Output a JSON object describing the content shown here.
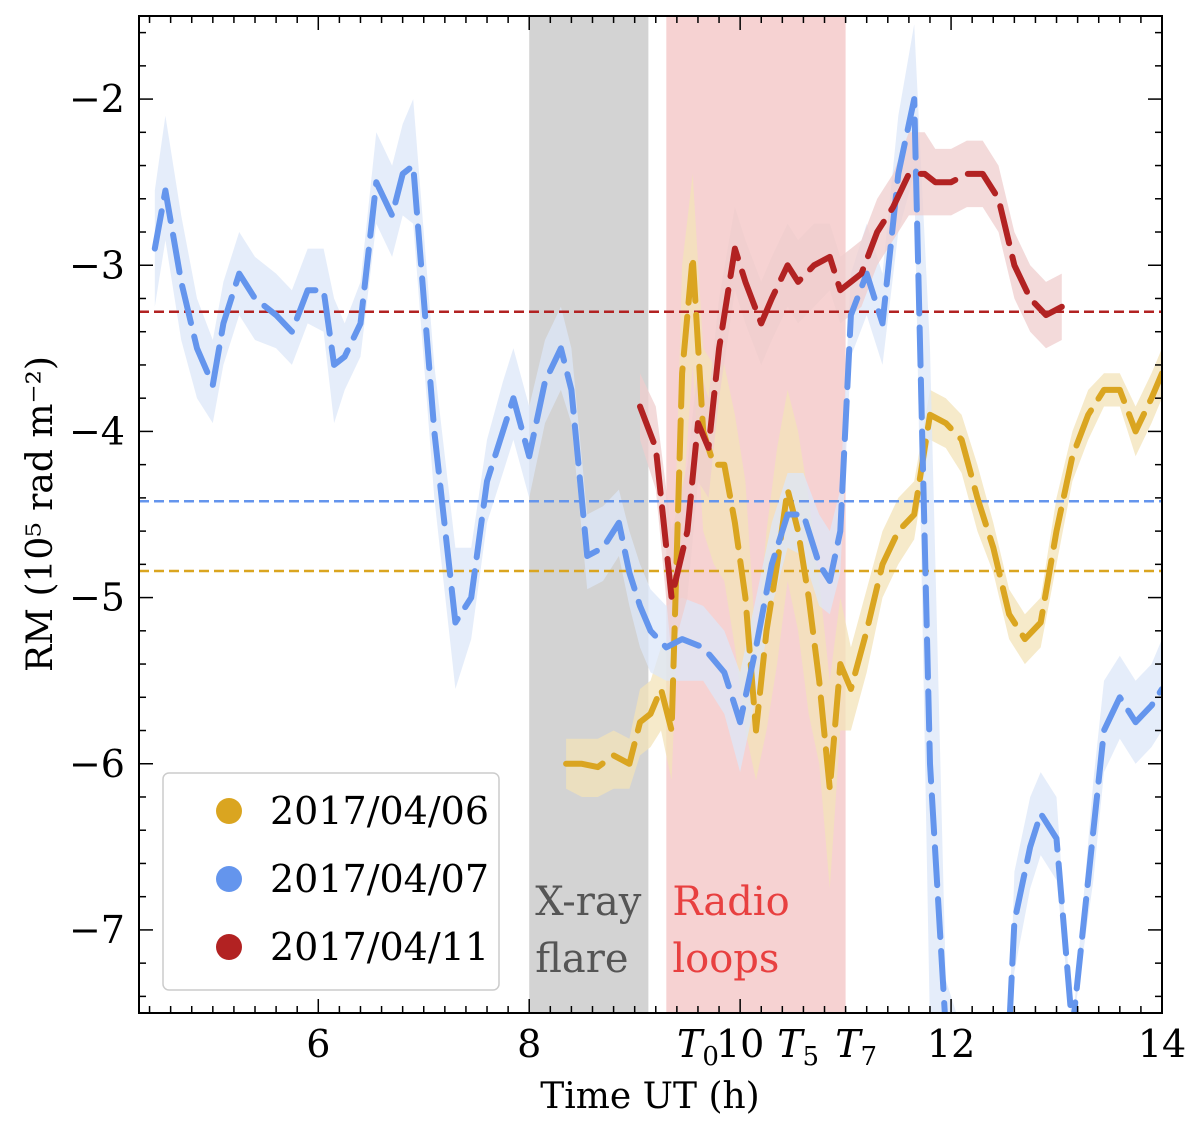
{
  "chart_data": {
    "type": "line",
    "title": "",
    "xlabel": "Time UT (h)",
    "ylabel": "RM (10⁵ rad m⁻²)",
    "xlim": [
      4.3,
      14.0
    ],
    "ylim": [
      -7.5,
      -1.5
    ],
    "x_ticks": [
      6,
      8,
      10,
      12,
      14
    ],
    "x_tick_labels": [
      "6",
      "8",
      "10",
      "12",
      "14"
    ],
    "x_special_ticks": [
      {
        "x": 9.6,
        "label": "T",
        "sub": "0"
      },
      {
        "x": 10.55,
        "label": "T",
        "sub": "5"
      },
      {
        "x": 11.1,
        "label": "T",
        "sub": "7"
      }
    ],
    "y_ticks": [
      -7,
      -6,
      -5,
      -4,
      -3,
      -2
    ],
    "y_tick_labels": [
      "−7",
      "−6",
      "−5",
      "−4",
      "−3",
      "−2"
    ],
    "regions": [
      {
        "name": "X-ray flare",
        "x0": 8.0,
        "x1": 9.13,
        "color": "#d3d3d3",
        "line1": "X-ray",
        "line2": "flare",
        "text_color": "#555555"
      },
      {
        "name": "Radio loops",
        "x0": 9.3,
        "x1": 11.0,
        "color": "#f6d2d2",
        "line1": "Radio",
        "line2": "loops",
        "text_color": "#e84040"
      }
    ],
    "reference_lines": [
      {
        "series": "2017/04/11",
        "y": -3.28,
        "color": "#b22222"
      },
      {
        "series": "2017/04/07",
        "y": -4.42,
        "color": "#6495ed"
      },
      {
        "series": "2017/04/06",
        "y": -4.84,
        "color": "#daa520"
      }
    ],
    "legend_position": "lower-left",
    "series": [
      {
        "name": "2017/04/06",
        "color": "#daa520",
        "band_color": "#f3e3b8",
        "x": [
          8.35,
          8.5,
          8.65,
          8.8,
          8.95,
          9.05,
          9.15,
          9.25,
          9.35,
          9.45,
          9.55,
          9.65,
          9.75,
          9.85,
          9.95,
          10.05,
          10.15,
          10.25,
          10.35,
          10.45,
          10.55,
          10.65,
          10.75,
          10.85,
          10.95,
          11.05,
          11.2,
          11.35,
          11.5,
          11.65,
          11.8,
          11.95,
          12.1,
          12.25,
          12.4,
          12.55,
          12.7,
          12.85,
          13.0,
          13.15,
          13.3,
          13.45,
          13.6,
          13.75,
          13.9,
          14.0
        ],
        "y": [
          -6.0,
          -6.0,
          -6.02,
          -5.95,
          -6.0,
          -5.75,
          -5.7,
          -5.55,
          -5.8,
          -3.65,
          -2.95,
          -4.0,
          -4.2,
          -4.2,
          -4.55,
          -5.0,
          -5.8,
          -5.2,
          -4.8,
          -4.35,
          -4.6,
          -5.0,
          -5.5,
          -6.15,
          -5.4,
          -5.55,
          -5.2,
          -4.8,
          -4.6,
          -4.5,
          -3.9,
          -3.95,
          -4.05,
          -4.4,
          -4.7,
          -5.1,
          -5.25,
          -5.15,
          -4.6,
          -4.15,
          -3.9,
          -3.75,
          -3.75,
          -4.0,
          -3.8,
          -3.65
        ],
        "lower": [
          -6.15,
          -6.2,
          -6.2,
          -6.15,
          -6.15,
          -5.95,
          -5.9,
          -5.8,
          -6.1,
          -4.5,
          -3.6,
          -4.6,
          -4.8,
          -4.9,
          -5.3,
          -5.8,
          -6.1,
          -5.8,
          -5.4,
          -4.9,
          -5.2,
          -5.7,
          -6.0,
          -6.75,
          -5.8,
          -5.8,
          -5.45,
          -5.0,
          -4.8,
          -4.65,
          -4.05,
          -4.1,
          -4.25,
          -4.6,
          -4.85,
          -5.25,
          -5.4,
          -5.3,
          -4.8,
          -4.3,
          -4.05,
          -3.85,
          -3.85,
          -4.15,
          -3.95,
          -3.8
        ],
        "upper": [
          -5.85,
          -5.85,
          -5.85,
          -5.8,
          -5.85,
          -5.55,
          -5.5,
          -5.3,
          -5.3,
          -3.0,
          -2.45,
          -3.5,
          -3.6,
          -3.6,
          -3.9,
          -4.3,
          -5.3,
          -4.6,
          -4.1,
          -3.75,
          -4.0,
          -4.4,
          -4.9,
          -5.5,
          -5.0,
          -5.3,
          -4.95,
          -4.6,
          -4.4,
          -4.3,
          -3.75,
          -3.8,
          -3.9,
          -4.2,
          -4.55,
          -4.95,
          -5.1,
          -5.0,
          -4.4,
          -4.0,
          -3.75,
          -3.65,
          -3.65,
          -3.85,
          -3.65,
          -3.5
        ]
      },
      {
        "name": "2017/04/07",
        "color": "#6495ed",
        "band_color": "#dce7f8",
        "x": [
          4.45,
          4.55,
          4.7,
          4.85,
          5.0,
          5.1,
          5.25,
          5.4,
          5.6,
          5.75,
          5.9,
          6.05,
          6.15,
          6.25,
          6.4,
          6.55,
          6.7,
          6.8,
          6.9,
          7.1,
          7.3,
          7.45,
          7.6,
          7.75,
          7.85,
          8.0,
          8.15,
          8.3,
          8.4,
          8.55,
          8.7,
          8.85,
          8.95,
          9.05,
          9.15,
          9.3,
          9.45,
          9.65,
          9.85,
          10.0,
          10.15,
          10.3,
          10.45,
          10.6,
          10.75,
          10.85,
          10.95,
          11.05,
          11.2,
          11.35,
          11.5,
          11.65,
          11.8,
          11.95,
          12.1,
          12.25,
          12.4,
          12.55,
          12.6,
          12.75,
          12.85,
          13.0,
          13.15,
          13.35,
          13.45,
          13.6,
          13.75,
          13.9,
          14.0
        ],
        "y": [
          -2.9,
          -2.55,
          -3.1,
          -3.5,
          -3.72,
          -3.35,
          -3.05,
          -3.2,
          -3.3,
          -3.4,
          -3.15,
          -3.15,
          -3.6,
          -3.55,
          -3.35,
          -2.5,
          -2.7,
          -2.45,
          -2.4,
          -4.0,
          -5.15,
          -5.0,
          -4.3,
          -4.0,
          -3.8,
          -4.15,
          -3.7,
          -3.5,
          -3.75,
          -4.75,
          -4.7,
          -4.55,
          -4.85,
          -5.05,
          -5.2,
          -5.3,
          -5.25,
          -5.3,
          -5.45,
          -5.75,
          -5.3,
          -4.8,
          -4.5,
          -4.5,
          -4.8,
          -4.9,
          -4.6,
          -3.3,
          -3.05,
          -3.35,
          -2.45,
          -2.0,
          -6.0,
          -7.6,
          -7.6,
          -7.6,
          -7.6,
          -7.6,
          -6.95,
          -6.5,
          -6.3,
          -6.45,
          -7.6,
          -6.4,
          -5.8,
          -5.6,
          -5.75,
          -5.65,
          -5.55
        ],
        "lower": [
          -3.25,
          -2.85,
          -3.45,
          -3.8,
          -3.95,
          -3.6,
          -3.3,
          -3.45,
          -3.5,
          -3.6,
          -3.35,
          -3.4,
          -3.95,
          -3.75,
          -3.55,
          -2.75,
          -2.95,
          -2.7,
          -2.75,
          -4.4,
          -5.55,
          -5.25,
          -4.55,
          -4.25,
          -4.05,
          -4.4,
          -3.95,
          -3.75,
          -3.95,
          -4.95,
          -4.9,
          -4.75,
          -5.05,
          -5.3,
          -5.45,
          -5.5,
          -5.5,
          -5.5,
          -5.7,
          -6.05,
          -5.6,
          -5.05,
          -4.7,
          -4.75,
          -5.05,
          -5.1,
          -4.85,
          -3.55,
          -3.3,
          -3.6,
          -2.8,
          -2.45,
          -7.6,
          -7.6,
          -7.6,
          -7.6,
          -7.6,
          -7.6,
          -7.25,
          -6.75,
          -6.55,
          -6.7,
          -7.6,
          -6.7,
          -6.05,
          -5.85,
          -6.0,
          -5.9,
          -5.8
        ],
        "upper": [
          -2.55,
          -2.1,
          -2.7,
          -3.2,
          -3.45,
          -3.1,
          -2.8,
          -2.95,
          -3.05,
          -3.15,
          -2.9,
          -2.9,
          -3.2,
          -3.35,
          -3.1,
          -2.2,
          -2.4,
          -2.15,
          -2.0,
          -3.6,
          -4.7,
          -4.7,
          -4.05,
          -3.7,
          -3.5,
          -3.85,
          -3.45,
          -3.25,
          -3.5,
          -4.5,
          -4.45,
          -4.35,
          -4.6,
          -4.8,
          -4.95,
          -5.05,
          -5.0,
          -5.05,
          -5.2,
          -5.45,
          -5.0,
          -4.55,
          -4.25,
          -4.25,
          -4.5,
          -4.6,
          -4.35,
          -3.05,
          -2.75,
          -3.05,
          -2.1,
          -1.55,
          -3.5,
          -7.3,
          -7.6,
          -7.6,
          -7.6,
          -7.6,
          -6.65,
          -6.2,
          -6.05,
          -6.2,
          -7.6,
          -6.1,
          -5.5,
          -5.35,
          -5.5,
          -5.4,
          -5.25
        ]
      },
      {
        "name": "2017/04/11",
        "color": "#b22222",
        "band_color": "#efcdcd",
        "x": [
          9.05,
          9.2,
          9.35,
          9.5,
          9.6,
          9.7,
          9.8,
          9.95,
          10.05,
          10.2,
          10.3,
          10.45,
          10.55,
          10.7,
          10.85,
          10.95,
          11.05,
          11.15,
          11.3,
          11.45,
          11.6,
          11.75,
          11.85,
          12.0,
          12.15,
          12.3,
          12.45,
          12.6,
          12.75,
          12.9,
          13.05
        ],
        "y": [
          -3.85,
          -4.1,
          -5.0,
          -4.6,
          -3.95,
          -4.1,
          -3.5,
          -2.9,
          -3.1,
          -3.35,
          -3.2,
          -3.0,
          -3.1,
          -3.0,
          -2.95,
          -3.15,
          -3.1,
          -3.05,
          -2.8,
          -2.65,
          -2.45,
          -2.45,
          -2.5,
          -2.5,
          -2.45,
          -2.45,
          -2.6,
          -3.0,
          -3.2,
          -3.3,
          -3.25
        ],
        "lower": [
          -4.05,
          -4.35,
          -5.35,
          -5.0,
          -4.3,
          -4.4,
          -3.8,
          -3.15,
          -3.35,
          -3.6,
          -3.45,
          -3.25,
          -3.35,
          -3.25,
          -3.15,
          -3.35,
          -3.3,
          -3.25,
          -3.0,
          -2.85,
          -2.7,
          -2.7,
          -2.7,
          -2.7,
          -2.65,
          -2.65,
          -2.8,
          -3.2,
          -3.4,
          -3.5,
          -3.45
        ],
        "upper": [
          -3.65,
          -3.85,
          -4.6,
          -4.2,
          -3.6,
          -3.8,
          -3.2,
          -2.65,
          -2.85,
          -3.1,
          -2.95,
          -2.75,
          -2.85,
          -2.75,
          -2.75,
          -2.95,
          -2.9,
          -2.85,
          -2.6,
          -2.45,
          -2.2,
          -2.2,
          -2.3,
          -2.3,
          -2.25,
          -2.25,
          -2.4,
          -2.8,
          -3.0,
          -3.1,
          -3.05
        ]
      }
    ]
  }
}
